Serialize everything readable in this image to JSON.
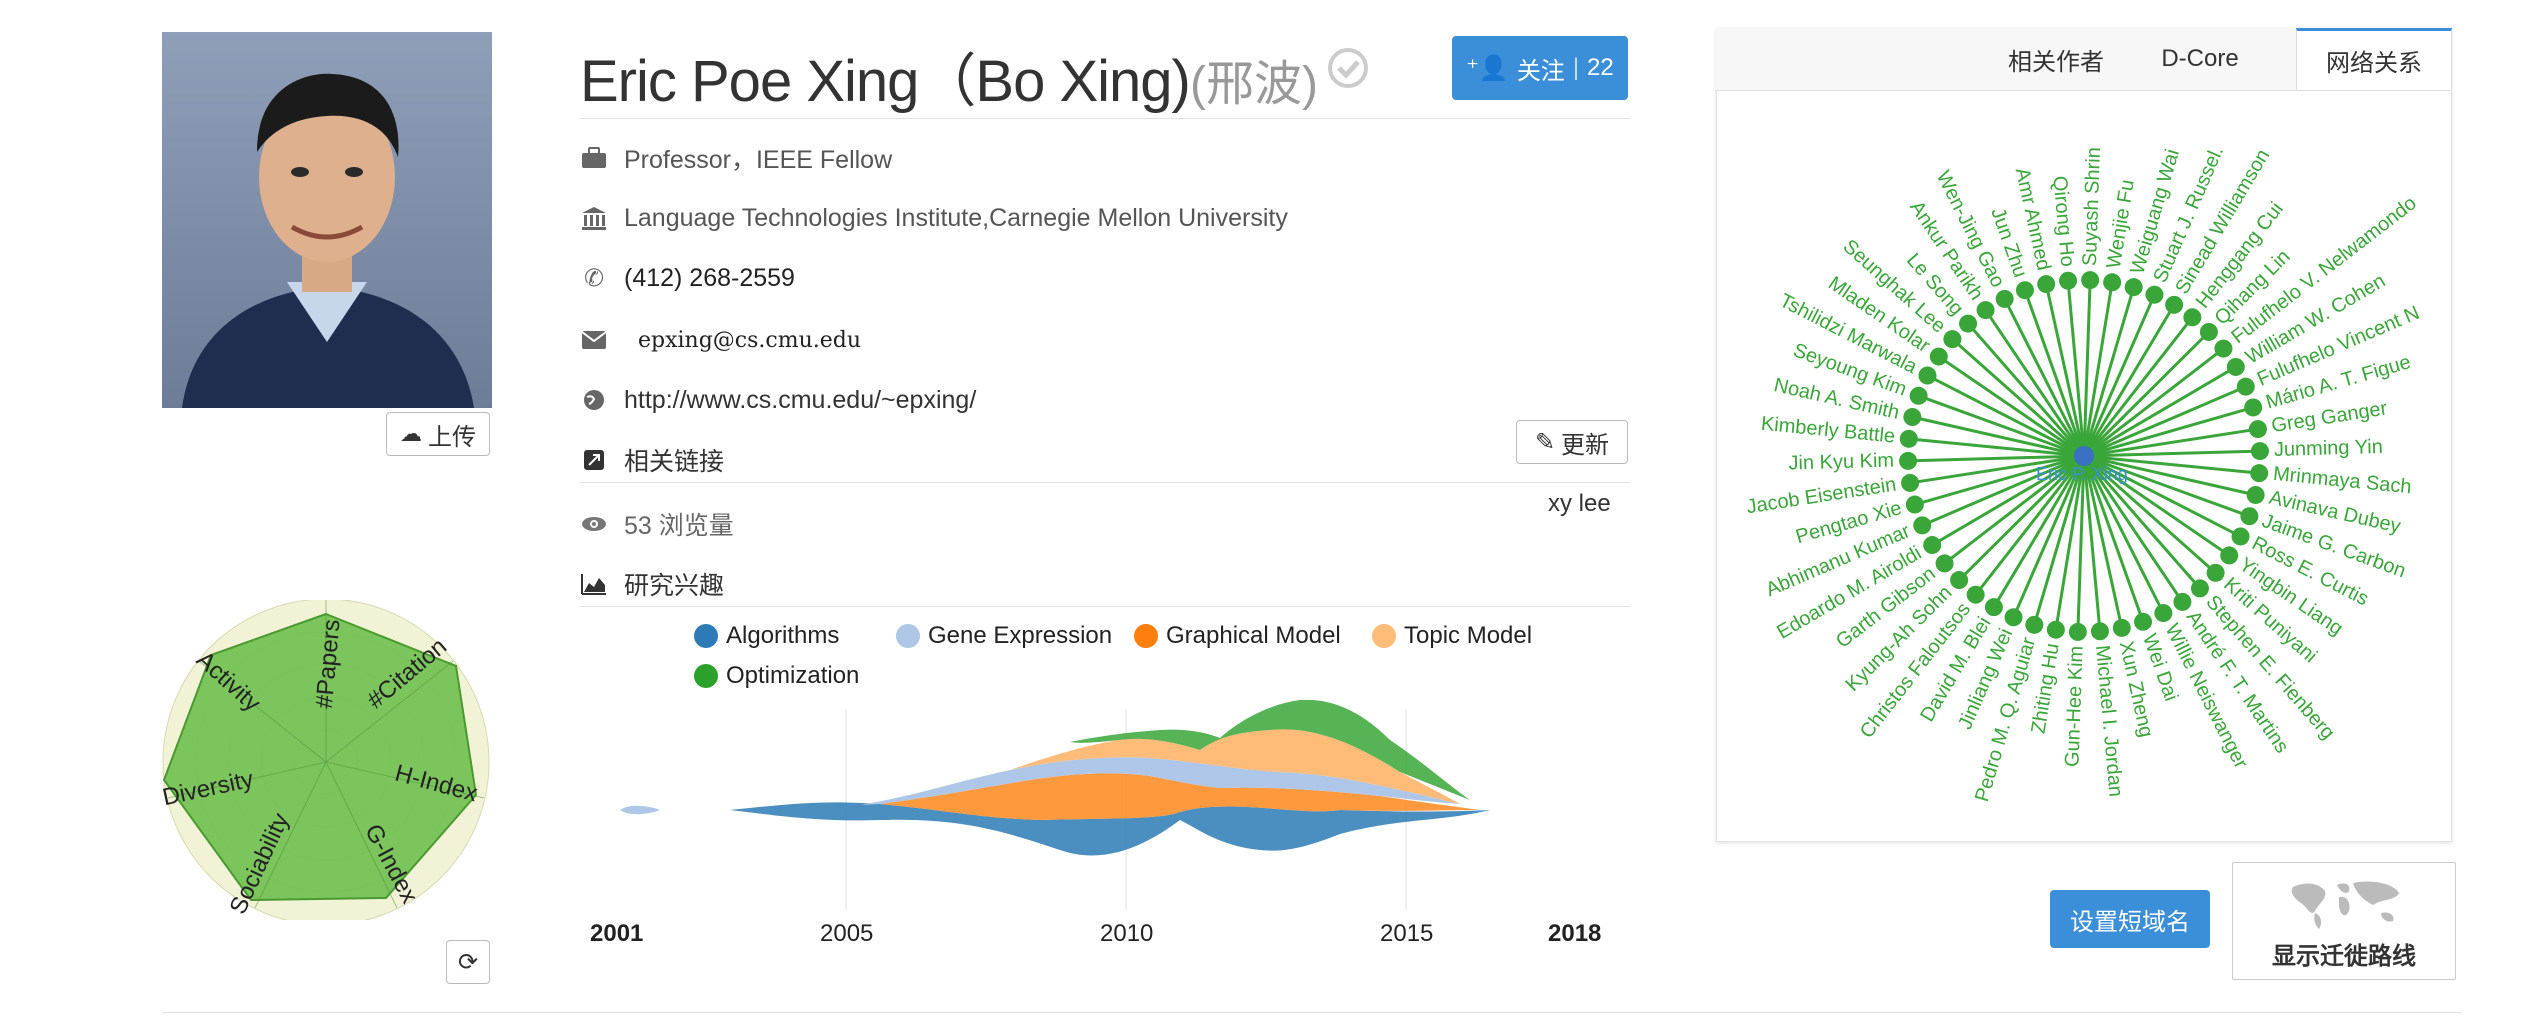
{
  "profile": {
    "upload_label": "上传",
    "name": "Eric Poe Xing（Bo Xing)",
    "name_cn": "(邢波)",
    "follow_label": "关注",
    "follow_count": "22",
    "position": "Professor，IEEE Fellow",
    "affiliation": "Language Technologies Institute,Carnegie Mellon University",
    "phone": "(412) 268-2559",
    "email": "epxing@cs.cmu.edu",
    "homepage": "http://www.cs.cmu.edu/~epxing/",
    "links_label": "相关链接",
    "update_label": "更新",
    "link_item": "xy lee",
    "views": "53 浏览量",
    "interests_label": "研究兴趣"
  },
  "radar": {
    "axes": [
      "#Papers",
      "#Citation",
      "H-Index",
      "G-Index",
      "Sociability",
      "Diversity",
      "Activity"
    ]
  },
  "chart_data": {
    "type": "area",
    "series": [
      {
        "name": "Algorithms",
        "color": "#2c7bb6"
      },
      {
        "name": "Gene Expression",
        "color": "#aec7e8"
      },
      {
        "name": "Graphical Model",
        "color": "#ff7f0e"
      },
      {
        "name": "Topic Model",
        "color": "#ffbb78"
      },
      {
        "name": "Optimization",
        "color": "#2ca02c"
      }
    ],
    "x_ticks": [
      "2001",
      "2005",
      "2010",
      "2015",
      "2018"
    ],
    "xlim": [
      2001,
      2018
    ]
  },
  "network": {
    "tabs": [
      "相关作者",
      "D-Core",
      "网络关系"
    ],
    "active_tab": "网络关系",
    "center": "Eric P. Xing",
    "nodes": [
      "Suyash Shrin",
      "Wenjie Fu",
      "Weiguang Wai",
      "Stuart J. Russel.",
      "Sinead Williamson",
      "Henggang Cui",
      "Qihang Lin",
      "Fulufhelo V. Nelwamondo",
      "William W. Cohen",
      "Fulufhelo Vincent N",
      "Mário A. T. Figue",
      "Greg Ganger",
      "Junming Yin",
      "Mrinmaya Sach",
      "Avinava Dubey",
      "Jaime G. Carbon",
      "Ross E. Curtis",
      "Yingbin Liang",
      "Kriti Puniyani",
      "Stephen E. Fienberg",
      "André F. T. Martins",
      "Willie Neiswanger",
      "Wei Dai",
      "Xun Zheng",
      "Michael I. Jordan",
      "Gun-Hee Kim",
      "Zhiting Hu",
      "Pedro M. Q. Aguiar",
      "Jinliang Wei",
      "David M. Blei",
      "Christos Faloutsos",
      "Kyung-Ah Sohn",
      "Garth Gibson",
      "Edoardo M. Airoldi",
      "Abhimanu Kumar",
      "Pengtao Xie",
      "Jacob Eisenstein",
      "Jin Kyu Kim",
      "Kimberly Battle",
      "Noah A. Smith",
      "Seyoung Kim",
      "Tshilidzi Marwala",
      "Mladen Kolar",
      "Seunghak Lee",
      "Le Song",
      "Ankur Parikh",
      "Wen-Jing Gao",
      "Jun Zhu",
      "Amr Ahmed",
      "Qirong Ho"
    ]
  },
  "actions": {
    "short_domain": "设置短域名",
    "migration": "显示迁徙路线"
  },
  "colors": {
    "accent": "#3b8fd8",
    "network_green": "#3aa63a",
    "radar_fill": "#6fbf4f"
  }
}
